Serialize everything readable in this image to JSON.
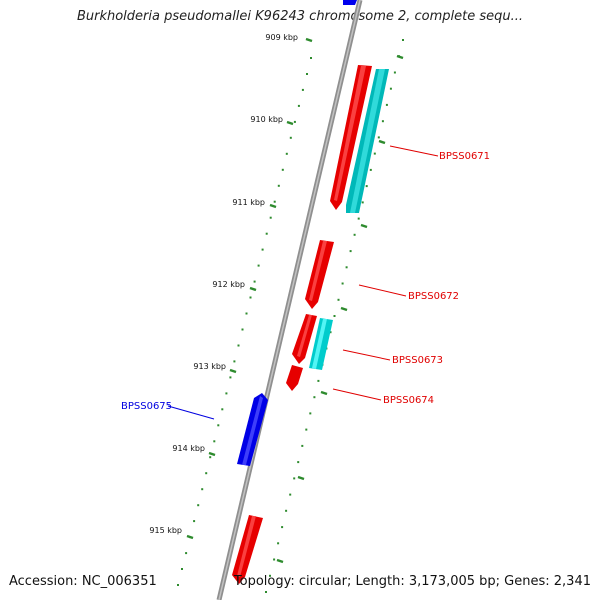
{
  "title": "Burkholderia pseudomallei K96243 chromosome 2, complete sequ...",
  "footer": {
    "accession": "Accession: NC_006351",
    "summary": "Topology: circular; Length: 3,173,005 bp; Genes: 2,341"
  },
  "colors": {
    "backbone": "#8a8a8a",
    "tick": "#2e8b2e",
    "forward_gene": "#ff0000",
    "forward_gene_alt": "#00cccc",
    "reverse_gene": "#0000ee",
    "tick_label": "#111111"
  },
  "kbp_ticks": [
    "909 kbp",
    "910 kbp",
    "911 kbp",
    "912 kbp",
    "913 kbp",
    "914 kbp",
    "915 kbp"
  ],
  "genes": [
    {
      "label": "BPSS0671",
      "strand": "forward",
      "color": "#ff0000"
    },
    {
      "label": "BPSS0672",
      "strand": "forward",
      "color": "#ff0000"
    },
    {
      "label": "BPSS0673",
      "strand": "forward",
      "color": "#ff0000"
    },
    {
      "label": "BPSS0674",
      "strand": "forward",
      "color": "#ff0000"
    },
    {
      "label": "BPSS0675",
      "strand": "reverse",
      "color": "#0000ee"
    }
  ]
}
